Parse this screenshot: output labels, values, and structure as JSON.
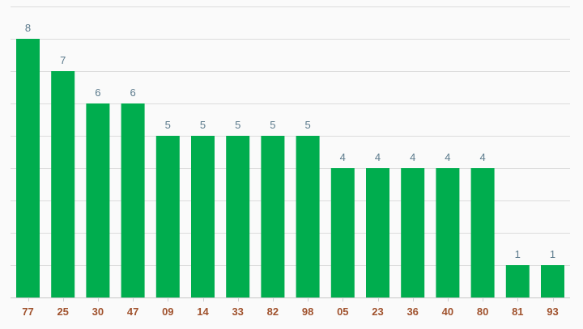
{
  "chart_data": {
    "type": "bar",
    "categories": [
      "77",
      "25",
      "30",
      "47",
      "09",
      "14",
      "33",
      "82",
      "98",
      "05",
      "23",
      "36",
      "40",
      "80",
      "81",
      "93"
    ],
    "values": [
      8,
      7,
      6,
      6,
      5,
      5,
      5,
      5,
      5,
      4,
      4,
      4,
      4,
      4,
      1,
      1
    ],
    "title": "",
    "xlabel": "",
    "ylabel": "",
    "ylim": [
      0,
      9
    ],
    "grid": true,
    "data_labels": true,
    "legend": "none",
    "colors": {
      "bar": "#00ad4e",
      "data_label": "#5b7a8c",
      "x_tick_label": "#a0522d",
      "grid": "#dcdcdc",
      "background": "#fafafa"
    }
  }
}
